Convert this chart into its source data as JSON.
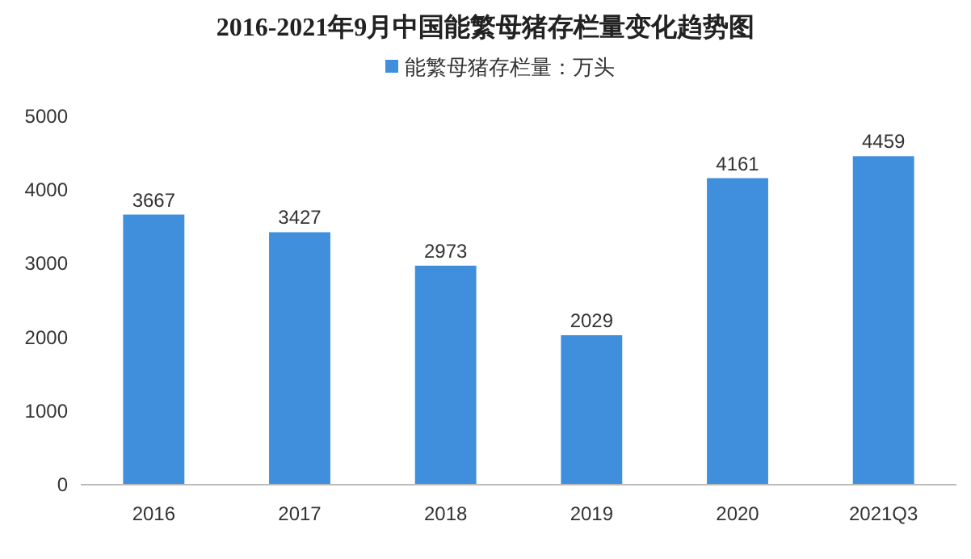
{
  "chart_data": {
    "type": "bar",
    "title": "2016-2021年9月中国能繁母猪存栏量变化趋势图",
    "categories": [
      "2016",
      "2017",
      "2018",
      "2019",
      "2020",
      "2021Q3"
    ],
    "series": [
      {
        "name": "能繁母猪存栏量：万头",
        "color": "#3f8fdc",
        "values": [
          3667,
          3427,
          2973,
          2029,
          4161,
          4459
        ]
      }
    ],
    "ylim": [
      0,
      5000
    ],
    "yticks": [
      0,
      1000,
      2000,
      3000,
      4000,
      5000
    ],
    "data_labels": true,
    "legend": "top"
  }
}
